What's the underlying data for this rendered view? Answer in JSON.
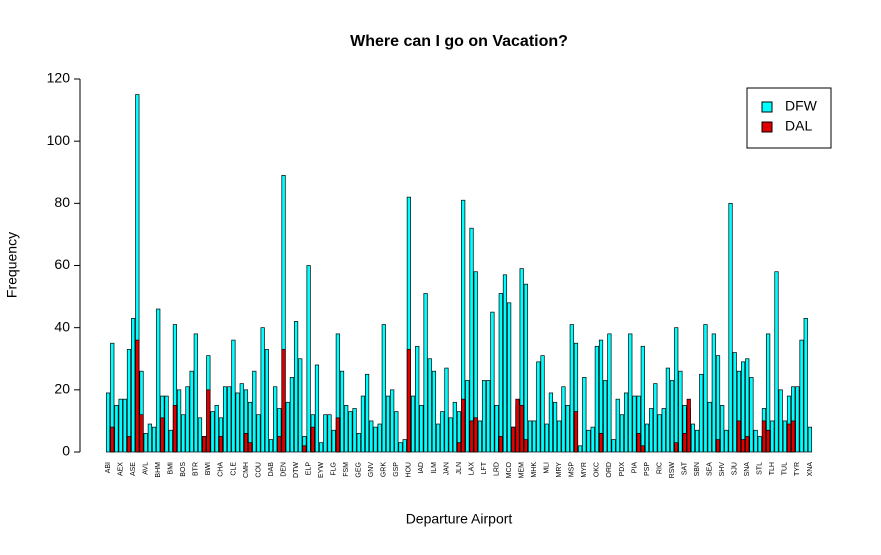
{
  "chart_data": {
    "type": "bar",
    "title": "Where can I go on Vacation?",
    "xlabel": "Departure Airport",
    "ylabel": "Frequency",
    "categories": [
      "ABI",
      null,
      null,
      "AEX",
      null,
      null,
      "ASE",
      null,
      null,
      "AVL",
      null,
      null,
      "BHM",
      null,
      null,
      "BMI",
      null,
      null,
      "BOS",
      null,
      null,
      "BTR",
      null,
      null,
      "BWI",
      null,
      null,
      "CHA",
      null,
      null,
      "CLE",
      null,
      null,
      "CMH",
      null,
      null,
      "COU",
      null,
      null,
      "DAB",
      null,
      null,
      "DEN",
      null,
      null,
      "DTW",
      null,
      null,
      "ELP",
      null,
      null,
      "EYW",
      null,
      null,
      "FLG",
      null,
      null,
      "FSM",
      null,
      null,
      "GEG",
      null,
      null,
      "GNV",
      null,
      null,
      "GRK",
      null,
      null,
      "GSP",
      null,
      null,
      "HOU",
      null,
      null,
      "IAD",
      null,
      null,
      "ILM",
      null,
      null,
      "JAN",
      null,
      null,
      "JLN",
      null,
      null,
      "LAX",
      null,
      null,
      "LFT",
      null,
      null,
      "LRD",
      null,
      null,
      "MCO",
      null,
      null,
      "MEM",
      null,
      null,
      "MHK",
      null,
      null,
      "MLI",
      null,
      null,
      "MRY",
      null,
      null,
      "MSP",
      null,
      null,
      "MYR",
      null,
      null,
      "OKC",
      null,
      null,
      "ORD",
      null,
      null,
      "PDX",
      null,
      null,
      "PIA",
      null,
      null,
      "PSP",
      null,
      null,
      "RIC",
      null,
      null,
      "RSW",
      null,
      null,
      "SAT",
      null,
      null,
      "SBN",
      null,
      null,
      "SEA",
      null,
      null,
      "SHV",
      null,
      null,
      "SJU",
      null,
      null,
      "SNA",
      null,
      null,
      "STL",
      null,
      null,
      "TLH",
      null,
      null,
      "TUL",
      null,
      null,
      "TYR",
      null,
      null,
      "XNA"
    ],
    "series": [
      {
        "name": "DFW",
        "color": "#00ffff",
        "values": [
          19,
          35,
          15,
          17,
          17,
          33,
          43,
          115,
          26,
          6,
          9,
          8,
          46,
          18,
          18,
          7,
          41,
          20,
          12,
          21,
          26,
          38,
          11,
          5,
          31,
          13,
          15,
          11,
          21,
          21,
          36,
          19,
          22,
          20,
          16,
          26,
          12,
          40,
          33,
          4,
          21,
          14,
          89,
          16,
          24,
          42,
          30,
          5,
          60,
          12,
          28,
          3,
          12,
          12,
          7,
          38,
          26,
          15,
          13,
          14,
          6,
          18,
          25,
          10,
          8,
          9,
          41,
          18,
          20,
          13,
          3,
          4,
          82,
          18,
          34,
          15,
          51,
          30,
          26,
          9,
          13,
          27,
          11,
          16,
          13,
          81,
          23,
          72,
          58,
          10,
          23,
          23,
          45,
          15,
          51,
          57,
          48,
          8,
          15,
          59,
          54,
          10,
          10,
          29,
          31,
          9,
          19,
          16,
          10,
          21,
          15,
          41,
          35,
          2,
          24,
          7,
          8,
          34,
          36,
          23,
          38,
          4,
          17,
          12,
          19,
          38,
          18,
          18,
          34,
          9,
          14,
          22,
          12,
          14,
          27,
          23,
          40,
          26,
          15,
          14,
          9,
          7,
          25,
          41,
          16,
          38,
          31,
          15,
          7,
          80,
          32,
          26,
          29,
          30,
          24,
          7,
          5,
          14,
          38,
          10,
          58,
          20,
          10,
          18,
          21,
          21,
          36,
          43,
          8
        ]
      },
      {
        "name": "DAL",
        "color": "#e00000",
        "values": [
          0,
          8,
          0,
          0,
          0,
          5,
          0,
          36,
          12,
          0,
          0,
          0,
          0,
          11,
          0,
          0,
          15,
          0,
          0,
          0,
          0,
          0,
          0,
          5,
          20,
          0,
          0,
          5,
          0,
          0,
          0,
          0,
          0,
          6,
          3,
          0,
          0,
          0,
          0,
          0,
          0,
          5,
          33,
          0,
          0,
          0,
          0,
          2,
          0,
          8,
          0,
          0,
          0,
          0,
          0,
          11,
          0,
          0,
          0,
          0,
          0,
          0,
          0,
          0,
          0,
          0,
          0,
          0,
          0,
          0,
          0,
          0,
          33,
          0,
          0,
          0,
          0,
          0,
          0,
          0,
          0,
          0,
          0,
          0,
          3,
          17,
          0,
          10,
          11,
          0,
          0,
          0,
          0,
          0,
          5,
          0,
          0,
          8,
          17,
          15,
          4,
          0,
          0,
          0,
          0,
          0,
          0,
          0,
          0,
          0,
          0,
          0,
          13,
          0,
          0,
          0,
          0,
          0,
          6,
          0,
          0,
          0,
          0,
          0,
          0,
          0,
          0,
          6,
          2,
          0,
          0,
          0,
          0,
          0,
          0,
          0,
          3,
          0,
          6,
          17,
          0,
          0,
          0,
          0,
          0,
          0,
          4,
          0,
          0,
          0,
          0,
          10,
          4,
          5,
          0,
          0,
          0,
          10,
          7,
          0,
          0,
          0,
          0,
          9,
          10,
          0,
          0,
          0,
          0
        ]
      }
    ],
    "ylim": [
      0,
      120
    ],
    "yticks": [
      0,
      20,
      40,
      60,
      80,
      100,
      120
    ],
    "grid": false,
    "legend": "top-right"
  }
}
